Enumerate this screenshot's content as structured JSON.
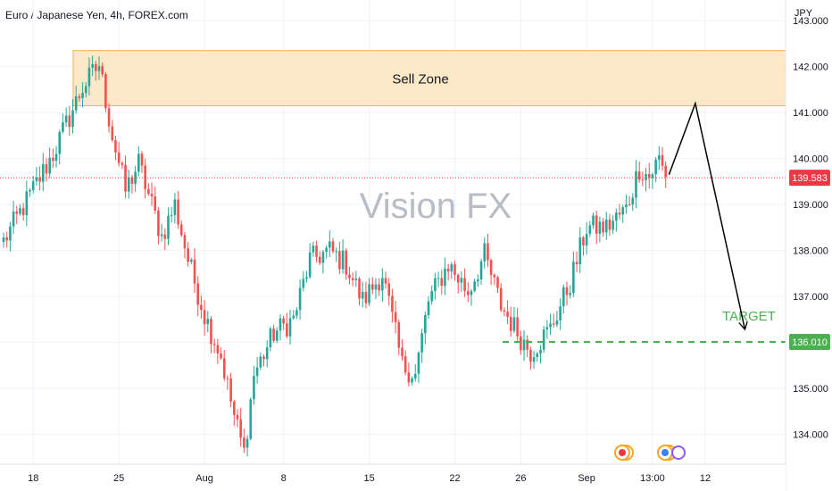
{
  "chart_title": "Euro / Japanese Yen, 4h, FOREX.com",
  "watermark": "Vision FX",
  "chart_data": {
    "type": "candlestick",
    "currency": "JPY",
    "y_ticks": [
      "143.000",
      "142.000",
      "141.000",
      "140.000",
      "139.000",
      "138.000",
      "137.000",
      "136.000",
      "135.000",
      "134.000"
    ],
    "ylim": [
      133.35,
      143.45
    ],
    "x_ticks": [
      "18",
      "25",
      "Aug",
      "8",
      "15",
      "22",
      "26",
      "Sep",
      "13:00",
      "12"
    ],
    "last_price": "139.583",
    "target_price": "136.010",
    "sell_zone": {
      "label": "Sell Zone",
      "low": 141.15,
      "high": 142.35
    },
    "target_label": "TARGET",
    "projection_path": [
      {
        "bar": 202,
        "price": 139.65
      },
      {
        "bar": 210,
        "price": 141.2
      },
      {
        "bar": 225,
        "price": 136.3
      }
    ],
    "key_points": [
      {
        "bar": 0,
        "price": 138.2
      },
      {
        "bar": 8,
        "price": 139.2
      },
      {
        "bar": 15,
        "price": 140.1
      },
      {
        "bar": 24,
        "price": 141.55
      },
      {
        "bar": 29,
        "price": 142.05
      },
      {
        "bar": 33,
        "price": 140.5
      },
      {
        "bar": 37,
        "price": 139.3
      },
      {
        "bar": 41,
        "price": 139.9
      },
      {
        "bar": 48,
        "price": 138.3
      },
      {
        "bar": 52,
        "price": 139.0
      },
      {
        "bar": 56,
        "price": 137.8
      },
      {
        "bar": 61,
        "price": 136.6
      },
      {
        "bar": 66,
        "price": 135.7
      },
      {
        "bar": 70,
        "price": 134.4
      },
      {
        "bar": 73,
        "price": 133.6
      },
      {
        "bar": 76,
        "price": 135.3
      },
      {
        "bar": 82,
        "price": 136.2
      },
      {
        "bar": 88,
        "price": 136.5
      },
      {
        "bar": 93,
        "price": 137.8
      },
      {
        "bar": 99,
        "price": 138.0
      },
      {
        "bar": 104,
        "price": 137.7
      },
      {
        "bar": 109,
        "price": 136.9
      },
      {
        "bar": 115,
        "price": 137.5
      },
      {
        "bar": 121,
        "price": 135.5
      },
      {
        "bar": 125,
        "price": 135.3
      },
      {
        "bar": 129,
        "price": 136.9
      },
      {
        "bar": 135,
        "price": 137.7
      },
      {
        "bar": 141,
        "price": 137.1
      },
      {
        "bar": 146,
        "price": 137.9
      },
      {
        "bar": 151,
        "price": 136.8
      },
      {
        "bar": 157,
        "price": 136.1
      },
      {
        "bar": 160,
        "price": 135.8
      },
      {
        "bar": 166,
        "price": 136.3
      },
      {
        "bar": 172,
        "price": 137.3
      },
      {
        "bar": 177,
        "price": 138.5
      },
      {
        "bar": 183,
        "price": 138.5
      },
      {
        "bar": 189,
        "price": 138.9
      },
      {
        "bar": 193,
        "price": 139.8
      },
      {
        "bar": 196,
        "price": 139.6
      },
      {
        "bar": 199,
        "price": 140.0
      },
      {
        "bar": 201,
        "price": 139.6
      }
    ]
  },
  "colors": {
    "up": "#26a69a",
    "down": "#ef5350",
    "zone_fill": "#fde5bd",
    "zone_border": "#f2b24c",
    "target_line": "#4caf50",
    "target_text": "#4caf50",
    "grid": "#f0f3fa",
    "price_label": "#f23645",
    "arrow": "#000000",
    "watermark": "#b9bcc5"
  },
  "icons": [
    "event-flag-icon",
    "event-globe-icon"
  ]
}
